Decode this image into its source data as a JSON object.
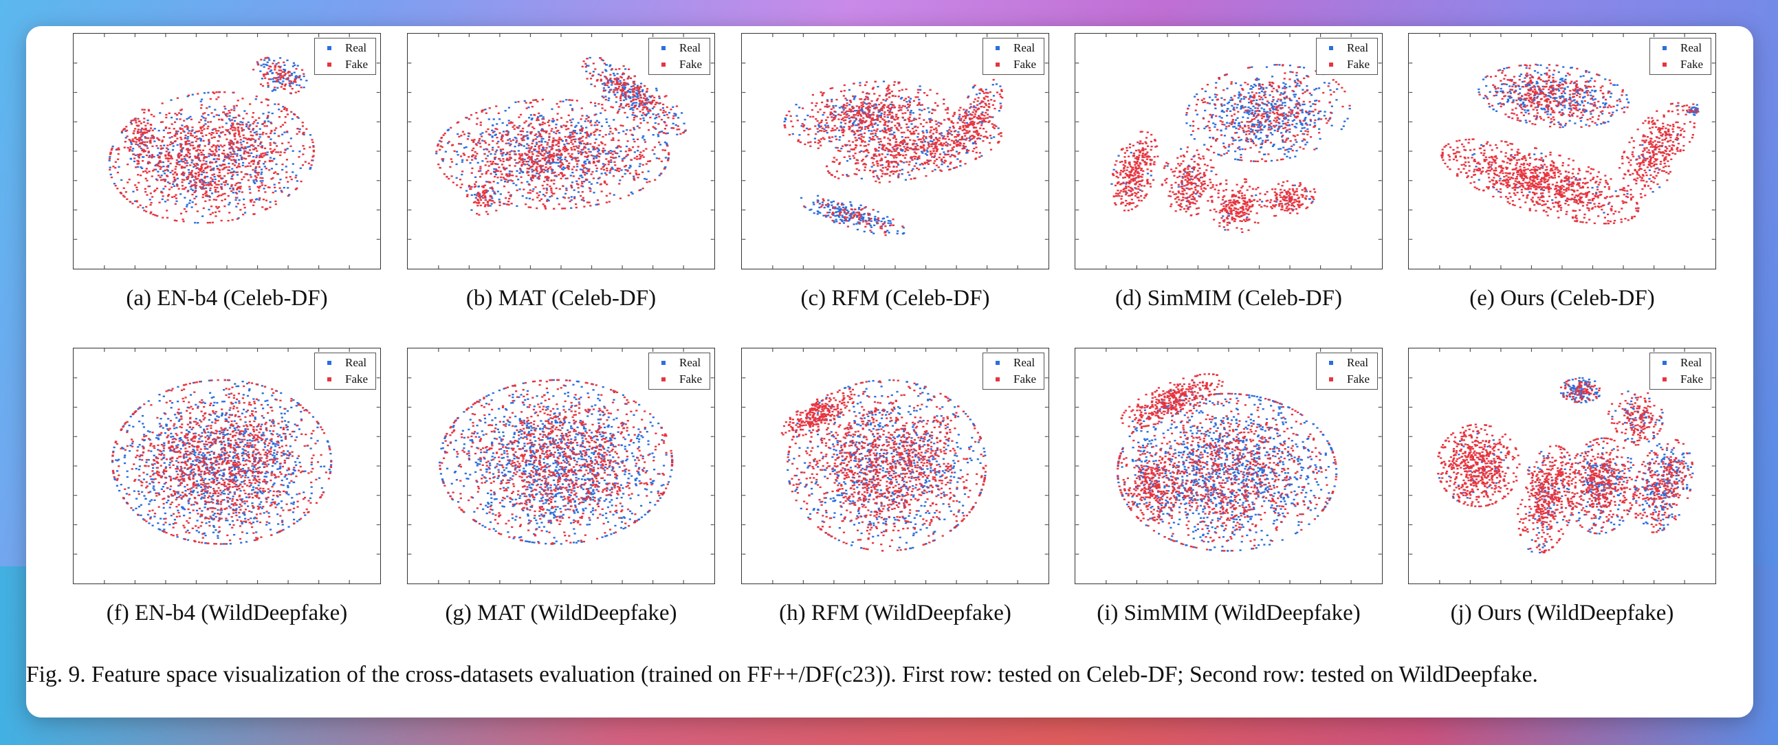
{
  "figure": {
    "caption": "Fig. 9.  Feature space visualization of the cross-datasets evaluation (trained on FF++/DF(c23)). First row: tested on Celeb-DF; Second row: tested on WildDeepfake.",
    "legend": {
      "real_label": "Real",
      "fake_label": "Fake",
      "real_color": "#2a6fde",
      "fake_color": "#e8343f"
    },
    "panels": [
      {
        "caption": "(a)  EN-b4  (Celeb-DF)"
      },
      {
        "caption": "(b)  MAT  (Celeb-DF)"
      },
      {
        "caption": "(c)  RFM  (Celeb-DF)"
      },
      {
        "caption": "(d)  SimMIM  (Celeb-DF)"
      },
      {
        "caption": "(e)  Ours  (Celeb-DF)"
      },
      {
        "caption": "(f)  EN-b4  (WildDeepfake)"
      },
      {
        "caption": "(g)  MAT  (WildDeepfake)"
      },
      {
        "caption": "(h)  RFM  (WildDeepfake)"
      },
      {
        "caption": "(i)  SimMIM  (WildDeepfake)"
      },
      {
        "caption": "(j)  Ours  (WildDeepfake)"
      }
    ]
  }
}
